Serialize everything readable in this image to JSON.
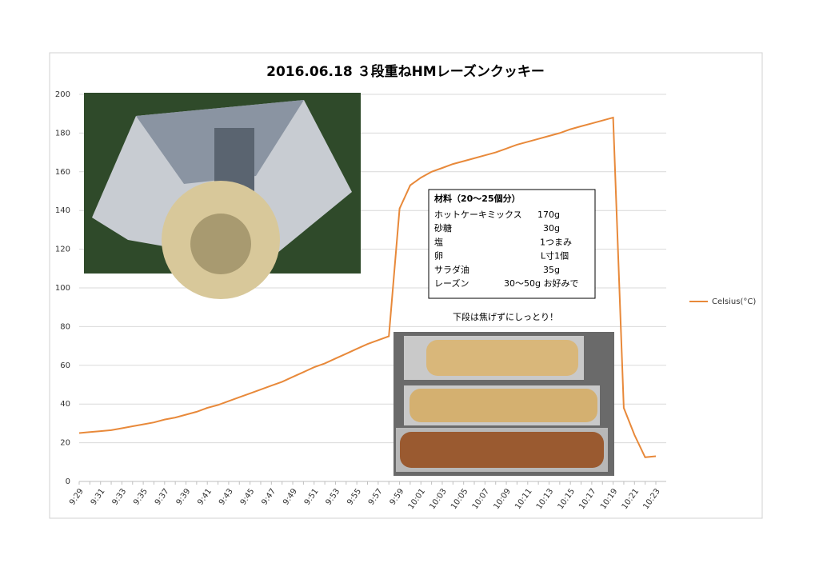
{
  "chart_data": {
    "type": "line",
    "title": "2016.06.18 ３段重ねHMレーズンクッキー",
    "categories": [
      "9:29",
      null,
      "9:31",
      null,
      "9:33",
      null,
      "9:35",
      null,
      "9:37",
      null,
      "9:39",
      null,
      "9:41",
      null,
      "9:43",
      null,
      "9:45",
      null,
      "9:47",
      null,
      "9:49",
      null,
      "9:51",
      null,
      "9:53",
      null,
      "9:55",
      null,
      "9:57",
      null,
      "9:59",
      null,
      "10:01",
      null,
      "10:03",
      null,
      "10:05",
      null,
      "10:07",
      null,
      "10:09",
      null,
      "10:11",
      null,
      "10:13",
      null,
      "10:15",
      null,
      "10:17",
      null,
      "10:19",
      null,
      "10:21",
      null,
      "10:23"
    ],
    "series": [
      {
        "name": "Celsius(°C)",
        "color": "#e8893a",
        "values": [
          25,
          25.5,
          26,
          26.5,
          27.5,
          28.5,
          29.5,
          30.5,
          32,
          33,
          34.5,
          36,
          38,
          39.5,
          41.5,
          43.5,
          45.5,
          47.5,
          49.5,
          51.5,
          54,
          56.5,
          59,
          61,
          63.5,
          66,
          68.5,
          71,
          73,
          75,
          141,
          153,
          157,
          160,
          162,
          164,
          165.5,
          167,
          168.5,
          170,
          172,
          174,
          175.5,
          177,
          178.5,
          180,
          182,
          183.5,
          185,
          186.5,
          188,
          38,
          24,
          12.5,
          13
        ]
      }
    ],
    "ylim": [
      0,
      200
    ],
    "yticks": [
      0,
      20,
      40,
      60,
      80,
      100,
      120,
      140,
      160,
      180,
      200
    ],
    "grid": true,
    "legend": "right",
    "recipe": {
      "heading": "材料（20～25個分）",
      "rows": [
        [
          "ホットケーキミックス",
          "170g"
        ],
        [
          "砂糖",
          "30g"
        ],
        [
          "塩",
          "1つまみ"
        ],
        [
          "卵",
          "L寸1個"
        ],
        [
          "サラダ油",
          "35g"
        ],
        [
          "レーズン",
          "30～50g お好みで"
        ]
      ]
    },
    "caption": "下段は焦げずにしっとり！"
  }
}
